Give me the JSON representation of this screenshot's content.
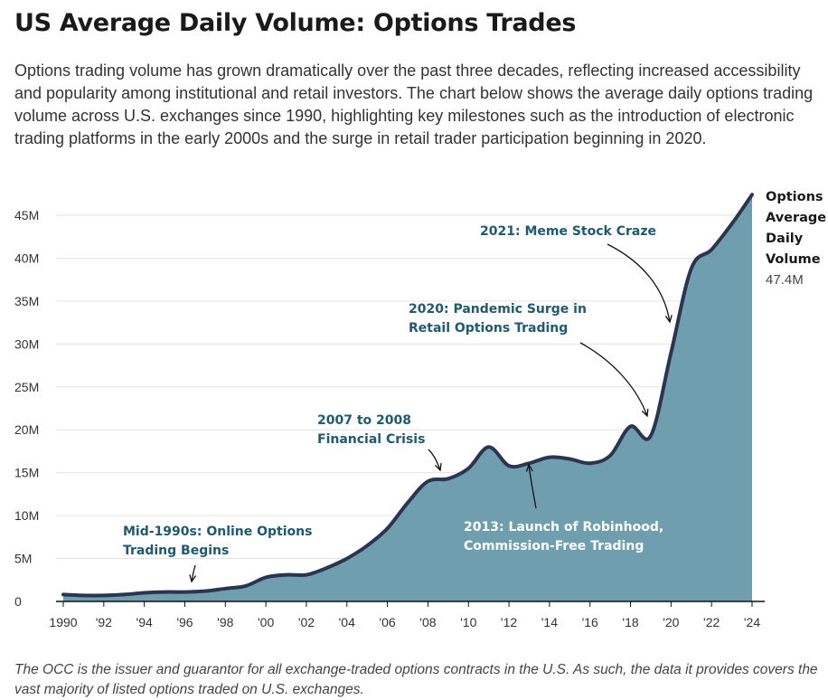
{
  "title": "US Average Daily Volume: Options Trades",
  "subtitle": "Options trading volume has grown dramatically over the past three decades, reflecting increased accessibility and popularity among institutional and retail investors. The chart below shows the average daily options trading volume across U.S. exchanges since 1990, highlighting key milestones such as the introduction of electronic trading platforms in the early 2000s and the surge in retail trader participation beginning in 2020.",
  "footnote": "The OCC is the issuer and guarantor for all exchange-traded options contracts in the U.S. As such, the data it provides covers the vast majority of listed options traded on U.S. exchanges.",
  "colors": {
    "area": "#6f9eaf",
    "line": "#2b3550",
    "annotation_dark": "#205a70",
    "annotation_light": "#ffffff",
    "grid": "#e3e3e3"
  },
  "chart_data": {
    "type": "area",
    "x": [
      1990,
      1991,
      1992,
      1993,
      1994,
      1995,
      1996,
      1997,
      1998,
      1999,
      2000,
      2001,
      2002,
      2003,
      2004,
      2005,
      2006,
      2007,
      2008,
      2009,
      2010,
      2011,
      2012,
      2013,
      2014,
      2015,
      2016,
      2017,
      2018,
      2019,
      2020,
      2021,
      2022,
      2023,
      2024
    ],
    "values": [
      0.8,
      0.7,
      0.7,
      0.8,
      1.0,
      1.1,
      1.1,
      1.2,
      1.5,
      1.8,
      2.8,
      3.1,
      3.1,
      3.9,
      5.0,
      6.5,
      8.5,
      11.5,
      14.0,
      14.3,
      15.5,
      18.0,
      15.8,
      16.1,
      16.8,
      16.6,
      16.1,
      17.0,
      20.4,
      19.3,
      29.0,
      38.8,
      41.0,
      44.0,
      47.4
    ],
    "y_ticks": [
      0,
      5,
      10,
      15,
      20,
      25,
      30,
      35,
      40,
      45
    ],
    "y_tick_labels": [
      "0",
      "5M",
      "10M",
      "15M",
      "20M",
      "25M",
      "30M",
      "35M",
      "40M",
      "45M"
    ],
    "x_ticks": [
      1990,
      1992,
      1994,
      1996,
      1998,
      2000,
      2002,
      2004,
      2006,
      2008,
      2010,
      2012,
      2014,
      2016,
      2018,
      2020,
      2022,
      2024
    ],
    "x_tick_labels": [
      "1990",
      "'92",
      "'94",
      "'96",
      "'98",
      "'00",
      "'02",
      "'04",
      "'06",
      "'08",
      "'10",
      "'12",
      "'14",
      "'16",
      "'18",
      "'20",
      "'22",
      "'24"
    ],
    "xlim": [
      1990,
      2024
    ],
    "ylim": [
      0,
      47.4
    ],
    "grid": "horizontal",
    "end_label": {
      "lines": [
        "Options",
        "Average",
        "Daily",
        "Volume"
      ],
      "value": "47.4M"
    },
    "annotations": [
      {
        "lines": [
          "Mid-1990s: Online Options",
          "Trading Begins"
        ],
        "style": "dark"
      },
      {
        "lines": [
          "2007 to 2008",
          "Financial Crisis"
        ],
        "style": "dark"
      },
      {
        "lines": [
          "2013: Launch of Robinhood,",
          "Commission-Free Trading"
        ],
        "style": "light"
      },
      {
        "lines": [
          "2020: Pandemic Surge in",
          "Retail Options Trading"
        ],
        "style": "dark"
      },
      {
        "lines": [
          "2021: Meme Stock Craze"
        ],
        "style": "dark"
      }
    ]
  }
}
